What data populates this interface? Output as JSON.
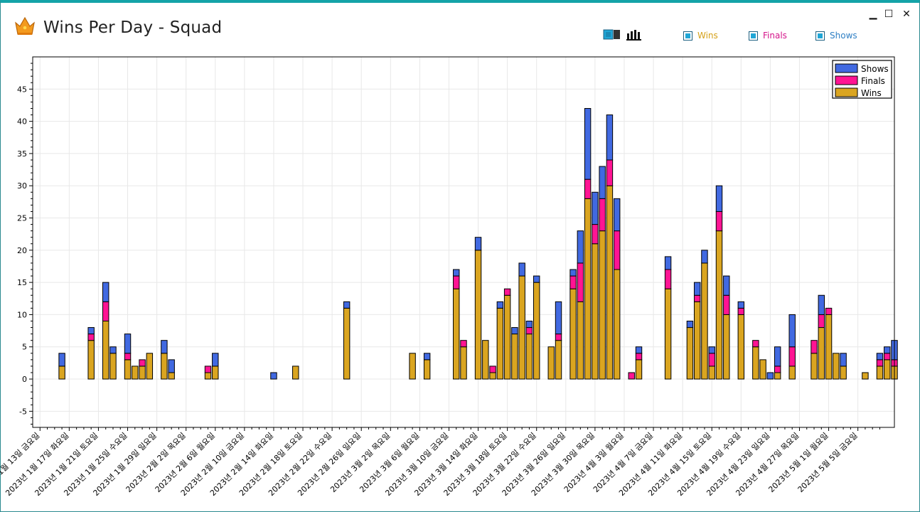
{
  "window": {
    "title": "Wins Per Day - Squad",
    "minimize_glyph": "▁",
    "maximize_glyph": "☐",
    "close_glyph": "✕"
  },
  "toolbar": {
    "icons": [
      "column-layout-icon",
      "bar-chart-icon"
    ]
  },
  "toggles": [
    {
      "label": "Wins",
      "color": "#d4a017",
      "checked": true
    },
    {
      "label": "Finals",
      "color": "#d4148a",
      "checked": true
    },
    {
      "label": "Shows",
      "color": "#2f7fc4",
      "checked": true
    }
  ],
  "colors": {
    "shows": "#4169e1",
    "finals": "#ff1493",
    "wins": "#daa520"
  },
  "chart_data": {
    "type": "bar",
    "stacked": true,
    "title": "",
    "xlabel": "",
    "ylabel": "",
    "ylim": [
      -7.5,
      50
    ],
    "yticks": [
      -5,
      0,
      5,
      10,
      15,
      20,
      25,
      30,
      35,
      40,
      45
    ],
    "grid": true,
    "legend_position": "top-right",
    "legend": [
      "Shows",
      "Finals",
      "Wins"
    ],
    "x_tick_labels": [
      "2023년 1월 13일 금요일",
      "2023년 1월 17일 화요일",
      "2023년 1월 21일 토요일",
      "2023년 1월 25일 수요일",
      "2023년 1월 29일 일요일",
      "2023년 2월 2일 목요일",
      "2023년 2월 6일 월요일",
      "2023년 2월 10일 금요일",
      "2023년 2월 14일 화요일",
      "2023년 2월 18일 토요일",
      "2023년 2월 22일 수요일",
      "2023년 2월 26일 일요일",
      "2023년 3월 2일 목요일",
      "2023년 3월 6일 월요일",
      "2023년 3월 10일 금요일",
      "2023년 3월 14일 화요일",
      "2023년 3월 18일 토요일",
      "2023년 3월 22일 수요일",
      "2023년 3월 26일 일요일",
      "2023년 3월 30일 목요일",
      "2023년 4월 3일 월요일",
      "2023년 4월 7일 금요일",
      "2023년 4월 11일 화요일",
      "2023년 4월 15일 토요일",
      "2023년 4월 19일 수요일",
      "2023년 4월 23일 일요일",
      "2023년 4월 27일 목요일",
      "2023년 5월 1일 월요일",
      "2023년 5월 5일 금요일"
    ],
    "series": [
      {
        "name": "Wins",
        "points": [
          [
            "2023-01-16",
            2
          ],
          [
            "2023-01-20",
            6
          ],
          [
            "2023-01-22",
            9
          ],
          [
            "2023-01-23",
            4
          ],
          [
            "2023-01-25",
            3
          ],
          [
            "2023-01-26",
            2
          ],
          [
            "2023-01-27",
            2
          ],
          [
            "2023-01-28",
            4
          ],
          [
            "2023-01-30",
            4
          ],
          [
            "2023-01-31",
            1
          ],
          [
            "2023-02-05",
            1
          ],
          [
            "2023-02-06",
            2
          ],
          [
            "2023-02-14",
            0
          ],
          [
            "2023-02-17",
            2
          ],
          [
            "2023-02-24",
            11
          ],
          [
            "2023-03-05",
            4
          ],
          [
            "2023-03-07",
            3
          ],
          [
            "2023-03-11",
            14
          ],
          [
            "2023-03-12",
            5
          ],
          [
            "2023-03-14",
            20
          ],
          [
            "2023-03-15",
            6
          ],
          [
            "2023-03-16",
            1
          ],
          [
            "2023-03-17",
            11
          ],
          [
            "2023-03-18",
            13
          ],
          [
            "2023-03-19",
            7
          ],
          [
            "2023-03-20",
            16
          ],
          [
            "2023-03-21",
            7
          ],
          [
            "2023-03-22",
            15
          ],
          [
            "2023-03-24",
            5
          ],
          [
            "2023-03-25",
            6
          ],
          [
            "2023-03-27",
            14
          ],
          [
            "2023-03-28",
            12
          ],
          [
            "2023-03-29",
            28
          ],
          [
            "2023-03-30",
            21
          ],
          [
            "2023-03-31",
            23
          ],
          [
            "2023-04-01",
            30
          ],
          [
            "2023-04-02",
            17
          ],
          [
            "2023-04-04",
            0
          ],
          [
            "2023-04-05",
            3
          ],
          [
            "2023-04-09",
            14
          ],
          [
            "2023-04-12",
            8
          ],
          [
            "2023-04-13",
            12
          ],
          [
            "2023-04-14",
            18
          ],
          [
            "2023-04-15",
            2
          ],
          [
            "2023-04-16",
            23
          ],
          [
            "2023-04-17",
            10
          ],
          [
            "2023-04-19",
            10
          ],
          [
            "2023-04-21",
            5
          ],
          [
            "2023-04-22",
            3
          ],
          [
            "2023-04-23",
            0
          ],
          [
            "2023-04-24",
            1
          ],
          [
            "2023-04-26",
            2
          ],
          [
            "2023-04-29",
            4
          ],
          [
            "2023-04-30",
            8
          ],
          [
            "2023-05-01",
            10
          ],
          [
            "2023-05-02",
            4
          ],
          [
            "2023-05-03",
            2
          ],
          [
            "2023-05-06",
            1
          ],
          [
            "2023-05-08",
            2
          ],
          [
            "2023-05-09",
            3
          ],
          [
            "2023-05-10",
            2
          ]
        ]
      },
      {
        "name": "Finals",
        "points": [
          [
            "2023-01-16",
            0
          ],
          [
            "2023-01-20",
            1
          ],
          [
            "2023-01-22",
            3
          ],
          [
            "2023-01-23",
            0
          ],
          [
            "2023-01-25",
            1
          ],
          [
            "2023-01-26",
            0
          ],
          [
            "2023-01-27",
            1
          ],
          [
            "2023-01-28",
            0
          ],
          [
            "2023-01-30",
            0
          ],
          [
            "2023-01-31",
            0
          ],
          [
            "2023-02-05",
            1
          ],
          [
            "2023-02-06",
            0
          ],
          [
            "2023-02-14",
            0
          ],
          [
            "2023-02-17",
            0
          ],
          [
            "2023-02-24",
            0
          ],
          [
            "2023-03-05",
            0
          ],
          [
            "2023-03-07",
            0
          ],
          [
            "2023-03-11",
            2
          ],
          [
            "2023-03-12",
            1
          ],
          [
            "2023-03-14",
            0
          ],
          [
            "2023-03-15",
            0
          ],
          [
            "2023-03-16",
            1
          ],
          [
            "2023-03-17",
            0
          ],
          [
            "2023-03-18",
            1
          ],
          [
            "2023-03-19",
            0
          ],
          [
            "2023-03-20",
            0
          ],
          [
            "2023-03-21",
            1
          ],
          [
            "2023-03-22",
            0
          ],
          [
            "2023-03-24",
            0
          ],
          [
            "2023-03-25",
            1
          ],
          [
            "2023-03-27",
            2
          ],
          [
            "2023-03-28",
            6
          ],
          [
            "2023-03-29",
            3
          ],
          [
            "2023-03-30",
            3
          ],
          [
            "2023-03-31",
            5
          ],
          [
            "2023-04-01",
            4
          ],
          [
            "2023-04-02",
            6
          ],
          [
            "2023-04-04",
            1
          ],
          [
            "2023-04-05",
            1
          ],
          [
            "2023-04-09",
            3
          ],
          [
            "2023-04-12",
            0
          ],
          [
            "2023-04-13",
            1
          ],
          [
            "2023-04-14",
            0
          ],
          [
            "2023-04-15",
            2
          ],
          [
            "2023-04-16",
            3
          ],
          [
            "2023-04-17",
            3
          ],
          [
            "2023-04-19",
            1
          ],
          [
            "2023-04-21",
            1
          ],
          [
            "2023-04-22",
            0
          ],
          [
            "2023-04-23",
            0
          ],
          [
            "2023-04-24",
            1
          ],
          [
            "2023-04-26",
            3
          ],
          [
            "2023-04-29",
            2
          ],
          [
            "2023-04-30",
            2
          ],
          [
            "2023-05-01",
            1
          ],
          [
            "2023-05-02",
            0
          ],
          [
            "2023-05-03",
            0
          ],
          [
            "2023-05-06",
            0
          ],
          [
            "2023-05-08",
            1
          ],
          [
            "2023-05-09",
            1
          ],
          [
            "2023-05-10",
            1
          ]
        ]
      },
      {
        "name": "Shows",
        "points": [
          [
            "2023-01-16",
            2
          ],
          [
            "2023-01-20",
            1
          ],
          [
            "2023-01-22",
            3
          ],
          [
            "2023-01-23",
            1
          ],
          [
            "2023-01-25",
            3
          ],
          [
            "2023-01-26",
            0
          ],
          [
            "2023-01-27",
            0
          ],
          [
            "2023-01-28",
            0
          ],
          [
            "2023-01-30",
            2
          ],
          [
            "2023-01-31",
            2
          ],
          [
            "2023-02-05",
            0
          ],
          [
            "2023-02-06",
            2
          ],
          [
            "2023-02-14",
            1
          ],
          [
            "2023-02-17",
            0
          ],
          [
            "2023-02-24",
            1
          ],
          [
            "2023-03-05",
            0
          ],
          [
            "2023-03-07",
            1
          ],
          [
            "2023-03-11",
            1
          ],
          [
            "2023-03-12",
            0
          ],
          [
            "2023-03-14",
            2
          ],
          [
            "2023-03-15",
            0
          ],
          [
            "2023-03-16",
            0
          ],
          [
            "2023-03-17",
            1
          ],
          [
            "2023-03-18",
            0
          ],
          [
            "2023-03-19",
            1
          ],
          [
            "2023-03-20",
            2
          ],
          [
            "2023-03-21",
            1
          ],
          [
            "2023-03-22",
            1
          ],
          [
            "2023-03-24",
            0
          ],
          [
            "2023-03-25",
            5
          ],
          [
            "2023-03-27",
            1
          ],
          [
            "2023-03-28",
            5
          ],
          [
            "2023-03-29",
            11
          ],
          [
            "2023-03-30",
            5
          ],
          [
            "2023-03-31",
            5
          ],
          [
            "2023-04-01",
            7
          ],
          [
            "2023-04-02",
            5
          ],
          [
            "2023-04-04",
            0
          ],
          [
            "2023-04-05",
            1
          ],
          [
            "2023-04-09",
            2
          ],
          [
            "2023-04-12",
            1
          ],
          [
            "2023-04-13",
            2
          ],
          [
            "2023-04-14",
            2
          ],
          [
            "2023-04-15",
            1
          ],
          [
            "2023-04-16",
            4
          ],
          [
            "2023-04-17",
            3
          ],
          [
            "2023-04-19",
            1
          ],
          [
            "2023-04-21",
            0
          ],
          [
            "2023-04-22",
            0
          ],
          [
            "2023-04-23",
            1
          ],
          [
            "2023-04-24",
            3
          ],
          [
            "2023-04-26",
            5
          ],
          [
            "2023-04-29",
            0
          ],
          [
            "2023-04-30",
            3
          ],
          [
            "2023-05-01",
            0
          ],
          [
            "2023-05-02",
            0
          ],
          [
            "2023-05-03",
            2
          ],
          [
            "2023-05-06",
            0
          ],
          [
            "2023-05-08",
            1
          ],
          [
            "2023-05-09",
            1
          ],
          [
            "2023-05-10",
            3
          ]
        ]
      }
    ]
  }
}
